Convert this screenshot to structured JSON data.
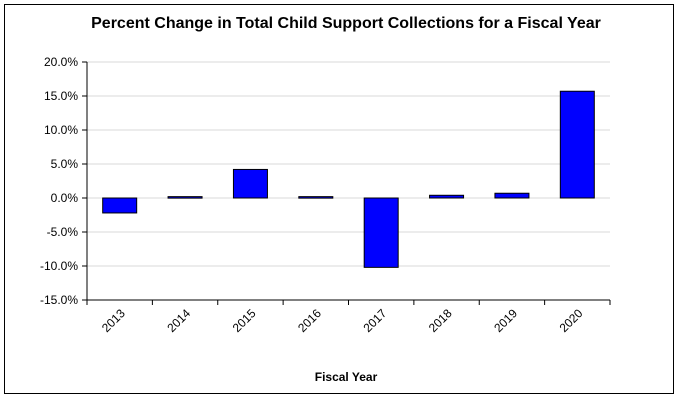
{
  "chart_data": {
    "type": "bar",
    "title": "Percent Change in Total Child Support Collections for a Fiscal Year",
    "xlabel": "Fiscal Year",
    "ylabel": "",
    "categories": [
      "2013",
      "2014",
      "2015",
      "2016",
      "2017",
      "2018",
      "2019",
      "2020"
    ],
    "values": [
      -2.2,
      0.2,
      4.2,
      0.2,
      -10.2,
      0.4,
      0.7,
      15.7
    ],
    "ylim": [
      -15,
      20
    ],
    "yticks": [
      20,
      15,
      10,
      5,
      0,
      -5,
      -10,
      -15
    ],
    "ytick_labels": [
      "20.0%",
      "15.0%",
      "10.0%",
      "5.0%",
      "0.0%",
      "-5.0%",
      "-10.0%",
      "-15.0%"
    ],
    "bar_color": "#0000FF",
    "grid": true,
    "legend": "none"
  }
}
